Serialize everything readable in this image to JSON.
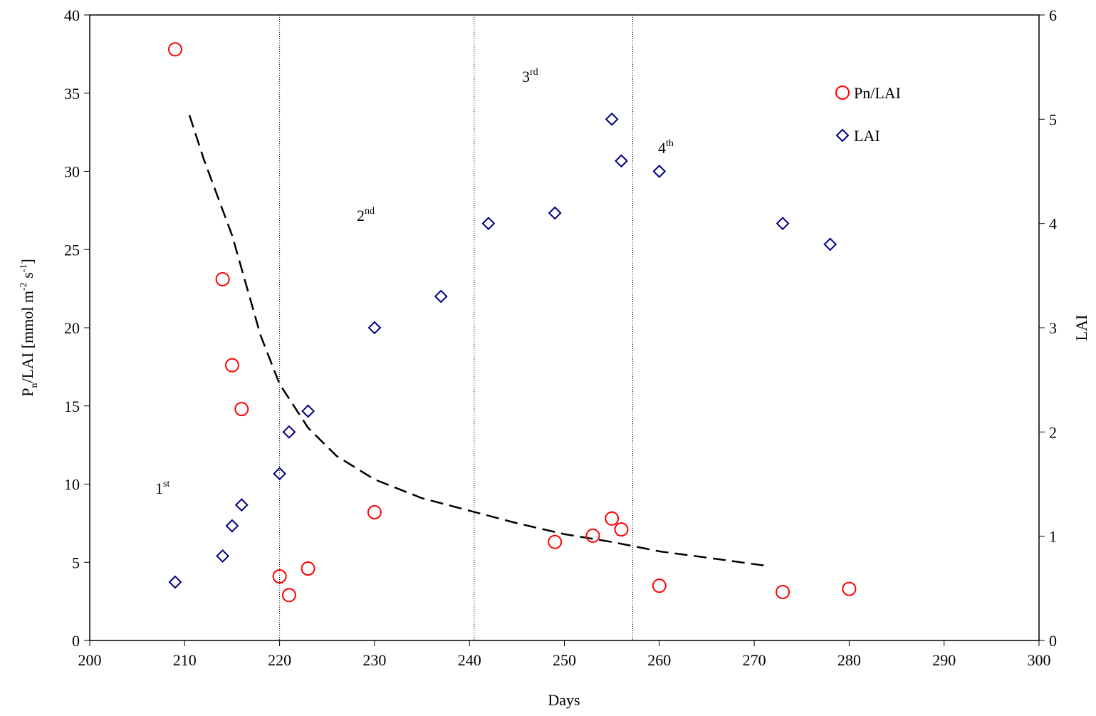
{
  "chart_data": {
    "type": "scatter",
    "x_label": "Days",
    "y_label": [
      "P",
      "n",
      "/LAI [mmol m",
      "-2",
      " s",
      "-1",
      "]"
    ],
    "y2_label": "LAI",
    "xlim": [
      200,
      300
    ],
    "xticks": [
      200,
      210,
      220,
      230,
      240,
      250,
      260,
      270,
      280,
      290,
      300
    ],
    "ylim": [
      0,
      40
    ],
    "yticks": [
      0,
      5,
      10,
      15,
      20,
      25,
      30,
      35,
      40
    ],
    "y2lim": [
      0,
      6
    ],
    "y2ticks": [
      0,
      1,
      2,
      3,
      4,
      5,
      6
    ],
    "legend": "upper right",
    "series": [
      {
        "name": "Pn/LAI",
        "color": "#ff0000",
        "marker": "circle",
        "x": [
          209,
          214,
          215,
          216,
          220,
          221,
          223,
          230,
          249,
          253,
          255,
          256,
          260,
          273,
          280
        ],
        "values": [
          37.8,
          23.1,
          17.6,
          14.8,
          4.1,
          2.9,
          4.6,
          8.2,
          6.3,
          6.7,
          7.8,
          7.1,
          3.5,
          3.1,
          3.3
        ]
      },
      {
        "name": "LAI",
        "color": "#000080",
        "marker": "diamond",
        "axis": "y2",
        "x": [
          209,
          214,
          215,
          216,
          220,
          221,
          223,
          230,
          237,
          242,
          249,
          255,
          256,
          260,
          273,
          278
        ],
        "values": [
          0.56,
          0.81,
          1.1,
          1.3,
          1.6,
          2.0,
          2.2,
          3.0,
          3.3,
          4.0,
          4.1,
          5.0,
          4.6,
          4.5,
          4.0,
          3.8
        ]
      }
    ],
    "fit": {
      "color": "#000000",
      "dashed": true,
      "x": [
        210.5,
        212,
        215,
        218,
        220,
        223,
        226,
        230,
        235,
        240,
        245,
        250,
        255,
        260,
        265,
        271
      ],
      "values": [
        33.6,
        30.8,
        25.9,
        19.5,
        16.4,
        13.6,
        11.8,
        10.3,
        9.1,
        8.3,
        7.5,
        6.8,
        6.3,
        5.7,
        5.3,
        4.8
      ]
    },
    "phase_lines": [
      220,
      240.5,
      257.2
    ],
    "annotations": [
      {
        "base": "1",
        "sup": "st"
      },
      {
        "base": "2",
        "sup": "nd"
      },
      {
        "base": "3",
        "sup": "rd"
      },
      {
        "base": "4",
        "sup": "th"
      }
    ]
  }
}
